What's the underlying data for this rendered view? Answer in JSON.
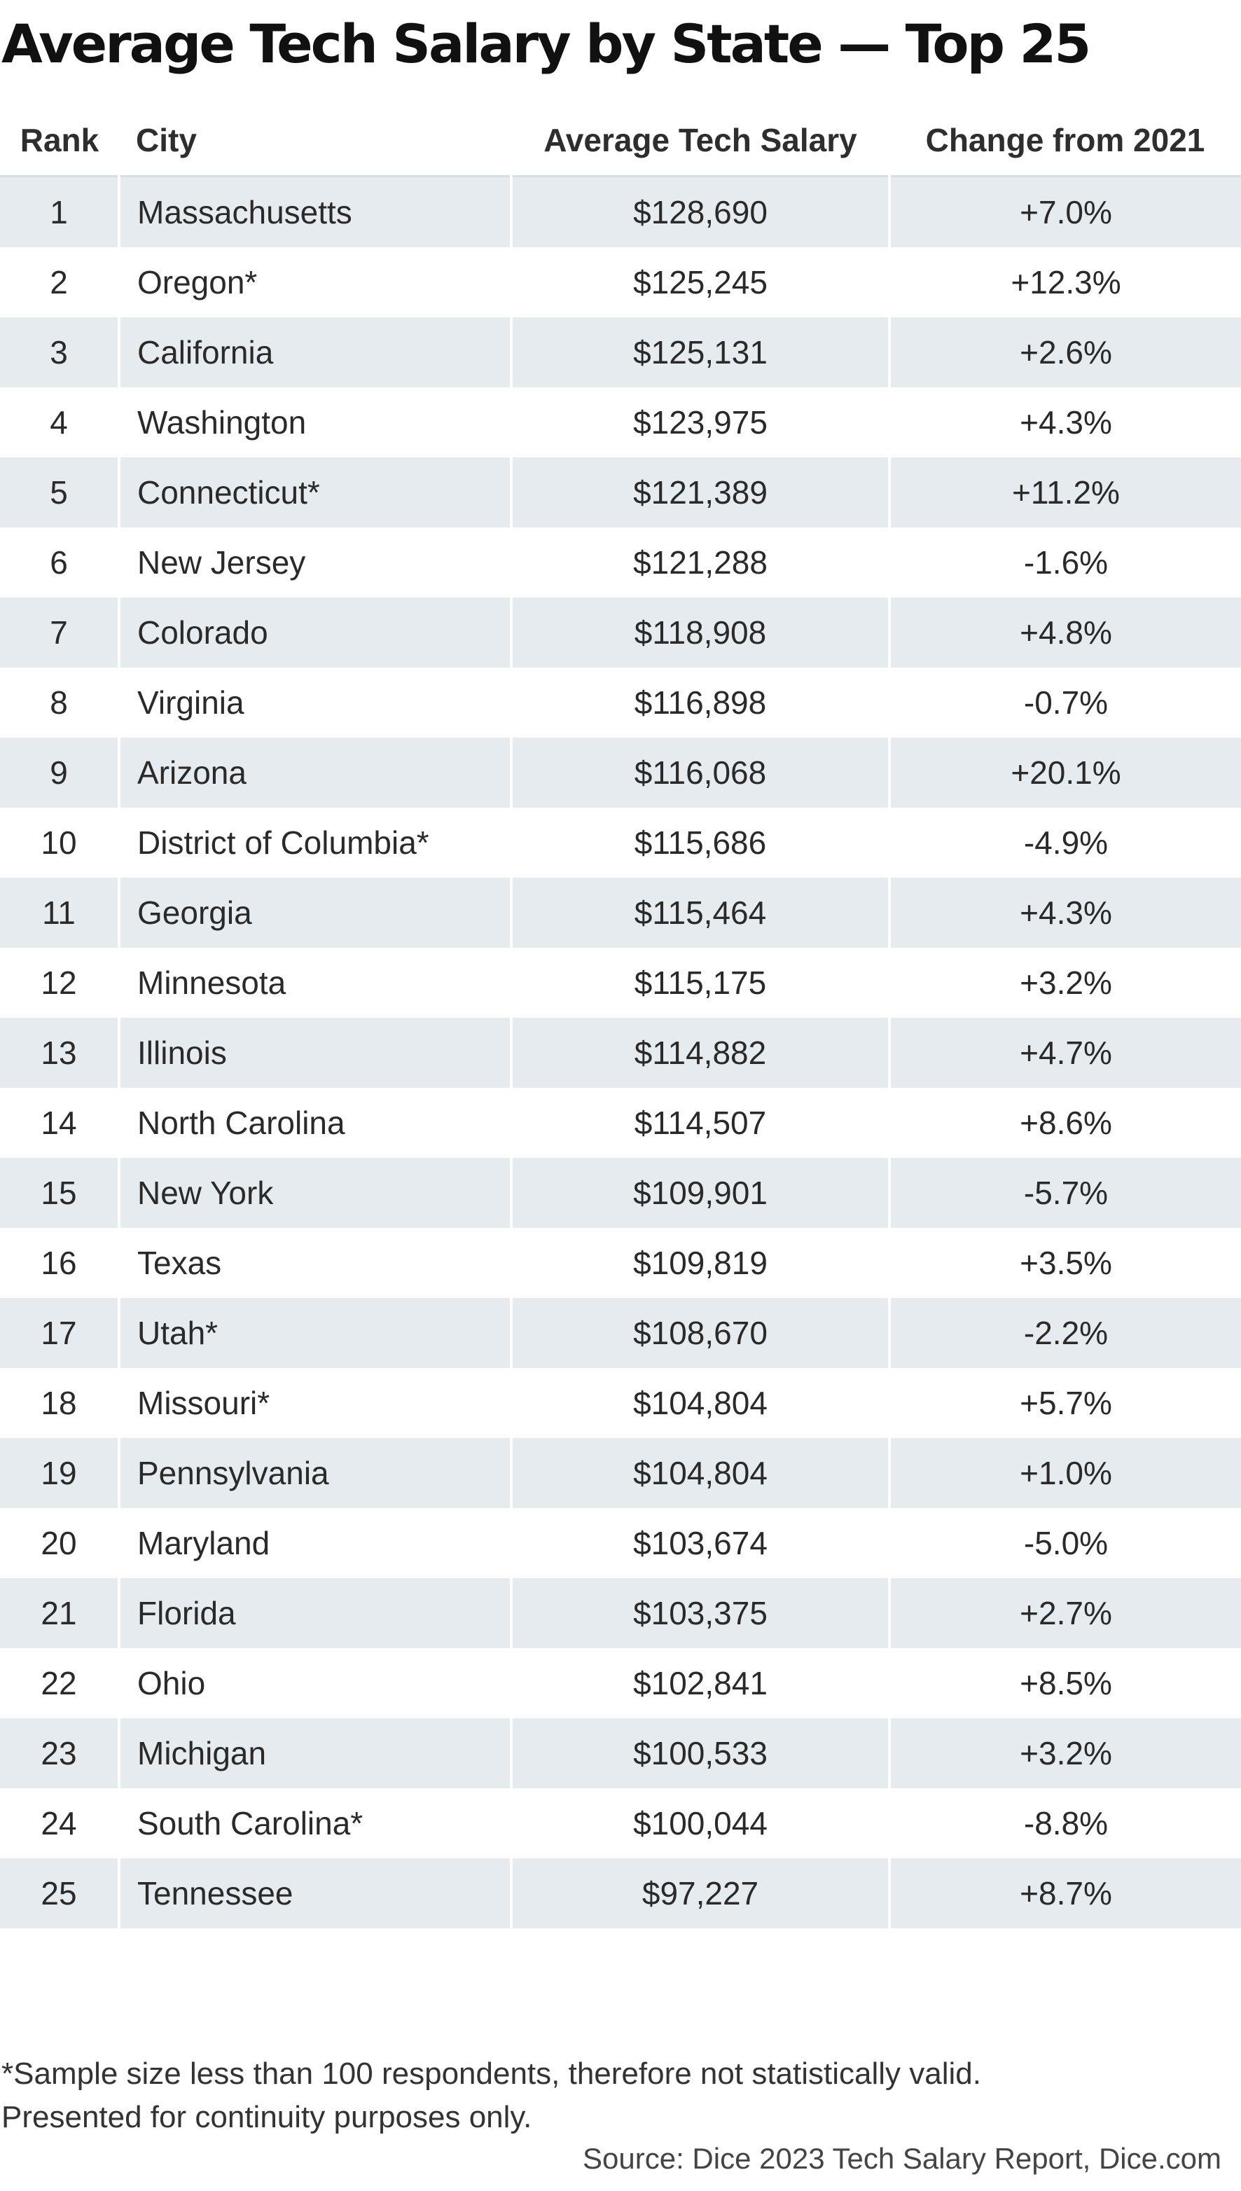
{
  "title": "Average Tech Salary by State — Top 25",
  "columns": {
    "rank": "Rank",
    "city": "City",
    "salary": "Average Tech Salary",
    "change": "Change from 2021"
  },
  "rows": [
    {
      "rank": "1",
      "city": "Massachusetts",
      "salary": "$128,690",
      "change": "+7.0%"
    },
    {
      "rank": "2",
      "city": "Oregon*",
      "salary": "$125,245",
      "change": "+12.3%"
    },
    {
      "rank": "3",
      "city": "California",
      "salary": "$125,131",
      "change": "+2.6%"
    },
    {
      "rank": "4",
      "city": "Washington",
      "salary": "$123,975",
      "change": "+4.3%"
    },
    {
      "rank": "5",
      "city": "Connecticut*",
      "salary": "$121,389",
      "change": "+11.2%"
    },
    {
      "rank": "6",
      "city": "New Jersey",
      "salary": "$121,288",
      "change": "-1.6%"
    },
    {
      "rank": "7",
      "city": "Colorado",
      "salary": "$118,908",
      "change": "+4.8%"
    },
    {
      "rank": "8",
      "city": "Virginia",
      "salary": "$116,898",
      "change": "-0.7%"
    },
    {
      "rank": "9",
      "city": "Arizona",
      "salary": "$116,068",
      "change": "+20.1%"
    },
    {
      "rank": "10",
      "city": "District of Columbia*",
      "salary": "$115,686",
      "change": "-4.9%"
    },
    {
      "rank": "11",
      "city": "Georgia",
      "salary": "$115,464",
      "change": "+4.3%"
    },
    {
      "rank": "12",
      "city": "Minnesota",
      "salary": "$115,175",
      "change": "+3.2%"
    },
    {
      "rank": "13",
      "city": "Illinois",
      "salary": "$114,882",
      "change": "+4.7%"
    },
    {
      "rank": "14",
      "city": "North Carolina",
      "salary": "$114,507",
      "change": "+8.6%"
    },
    {
      "rank": "15",
      "city": "New York",
      "salary": "$109,901",
      "change": "-5.7%"
    },
    {
      "rank": "16",
      "city": "Texas",
      "salary": "$109,819",
      "change": "+3.5%"
    },
    {
      "rank": "17",
      "city": "Utah*",
      "salary": "$108,670",
      "change": "-2.2%"
    },
    {
      "rank": "18",
      "city": "Missouri*",
      "salary": "$104,804",
      "change": "+5.7%"
    },
    {
      "rank": "19",
      "city": "Pennsylvania",
      "salary": "$104,804",
      "change": "+1.0%"
    },
    {
      "rank": "20",
      "city": "Maryland",
      "salary": "$103,674",
      "change": "-5.0%"
    },
    {
      "rank": "21",
      "city": "Florida",
      "salary": "$103,375",
      "change": "+2.7%"
    },
    {
      "rank": "22",
      "city": "Ohio",
      "salary": "$102,841",
      "change": "+8.5%"
    },
    {
      "rank": "23",
      "city": "Michigan",
      "salary": "$100,533",
      "change": "+3.2%"
    },
    {
      "rank": "24",
      "city": "South Carolina*",
      "salary": "$100,044",
      "change": "-8.8%"
    },
    {
      "rank": "25",
      "city": "Tennessee",
      "salary": "$97,227",
      "change": "+8.7%"
    }
  ],
  "footnote": {
    "line1": "*Sample size less than 100 respondents, therefore not statistically valid.",
    "line2": "Presented for continuity purposes only."
  },
  "source": "Source: Dice 2023 Tech Salary Report, Dice.com",
  "colors": {
    "stripe": "#e5ebee",
    "background": "#ffffff",
    "text": "#2a2a2a"
  }
}
